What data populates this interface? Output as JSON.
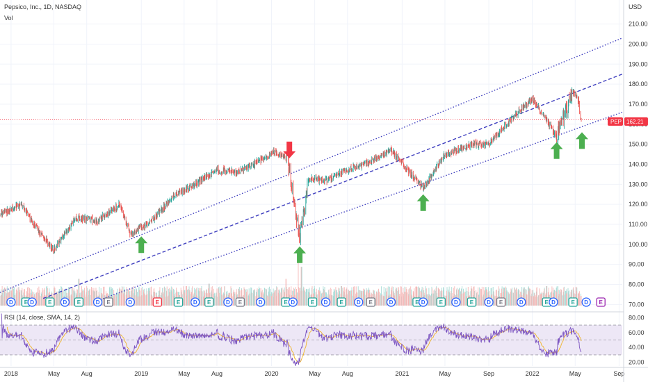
{
  "header": {
    "symbol_line": "Pepsico, Inc., 1D, NASDAQ",
    "volume_label": "Vol",
    "currency": "USD"
  },
  "price_tag": {
    "ticker": "PEP",
    "value": "162.21"
  },
  "colors": {
    "up": "#26a69a",
    "down": "#ef5350",
    "channel": "#3f3fbf",
    "arrow_up": "#4caf50",
    "arrow_down": "#f23645",
    "rsi_line": "#7e57c2",
    "rsi_sma": "#f0b429",
    "rsi_band": "#ede7f6",
    "price_tag": "#f23645"
  },
  "chart_data": [
    {
      "type": "candlestick",
      "title": "Pepsico, Inc., 1D, NASDAQ",
      "ylabel": "USD",
      "ylim": [
        67,
        222
      ],
      "xlim": [
        "2017-12-01",
        "2022-09-10"
      ],
      "y_ticks": [
        "70.00",
        "80.00",
        "90.00",
        "100.00",
        "110.00",
        "120.00",
        "130.00",
        "140.00",
        "150.00",
        "160.00",
        "170.00",
        "180.00",
        "190.00",
        "200.00",
        "210.00"
      ],
      "x_ticks": [
        {
          "label": "2018",
          "date": "2018-01-01"
        },
        {
          "label": "May",
          "date": "2018-05-01"
        },
        {
          "label": "Aug",
          "date": "2018-08-01"
        },
        {
          "label": "2019",
          "date": "2019-01-01"
        },
        {
          "label": "May",
          "date": "2019-05-01"
        },
        {
          "label": "Aug",
          "date": "2019-08-01"
        },
        {
          "label": "2020",
          "date": "2020-01-01"
        },
        {
          "label": "May",
          "date": "2020-05-01"
        },
        {
          "label": "Aug",
          "date": "2020-08-01"
        },
        {
          "label": "2021",
          "date": "2021-01-01"
        },
        {
          "label": "May",
          "date": "2021-05-01"
        },
        {
          "label": "Sep",
          "date": "2021-09-01"
        },
        {
          "label": "2022",
          "date": "2022-01-01"
        },
        {
          "label": "May",
          "date": "2022-05-01"
        },
        {
          "label": "Sep",
          "date": "2022-09-01"
        }
      ],
      "price_path": [
        [
          "2017-12-01",
          115
        ],
        [
          "2018-02-01",
          120
        ],
        [
          "2018-03-01",
          111
        ],
        [
          "2018-05-01",
          97
        ],
        [
          "2018-07-01",
          113
        ],
        [
          "2018-09-01",
          112
        ],
        [
          "2018-11-01",
          120
        ],
        [
          "2018-12-01",
          105
        ],
        [
          "2019-02-01",
          112
        ],
        [
          "2019-04-01",
          124
        ],
        [
          "2019-06-01",
          130
        ],
        [
          "2019-08-01",
          137
        ],
        [
          "2019-10-01",
          136
        ],
        [
          "2020-01-10",
          146
        ],
        [
          "2020-02-15",
          143
        ],
        [
          "2020-03-20",
          103
        ],
        [
          "2020-04-15",
          133
        ],
        [
          "2020-06-01",
          132
        ],
        [
          "2020-07-15",
          136
        ],
        [
          "2020-10-01",
          141
        ],
        [
          "2020-12-01",
          147
        ],
        [
          "2021-03-01",
          128
        ],
        [
          "2021-05-01",
          145
        ],
        [
          "2021-07-15",
          150
        ],
        [
          "2021-09-01",
          150
        ],
        [
          "2021-11-01",
          162
        ],
        [
          "2022-01-01",
          173
        ],
        [
          "2022-03-10",
          154
        ],
        [
          "2022-04-25",
          176
        ],
        [
          "2022-05-10",
          172
        ],
        [
          "2022-05-18",
          160
        ]
      ],
      "last_price": 162.21,
      "channel_lines": [
        {
          "style": "dotted",
          "start": [
            "2017-12-01",
            76
          ],
          "end": [
            "2022-09-10",
            203
          ]
        },
        {
          "style": "dashed",
          "start": [
            "2018-04-01",
            73
          ],
          "end": [
            "2022-09-10",
            185
          ]
        },
        {
          "style": "dotted",
          "start": [
            "2018-09-01",
            72
          ],
          "end": [
            "2022-09-10",
            166
          ]
        }
      ],
      "annotations": [
        {
          "kind": "arrow-up",
          "date": "2019-01-01",
          "value": 104
        },
        {
          "kind": "arrow-down",
          "date": "2020-02-20",
          "value": 143
        },
        {
          "kind": "arrow-up",
          "date": "2020-03-20",
          "value": 99
        },
        {
          "kind": "arrow-up",
          "date": "2021-03-01",
          "value": 125
        },
        {
          "kind": "arrow-up",
          "date": "2022-03-10",
          "value": 151
        },
        {
          "kind": "arrow-up",
          "date": "2022-05-20",
          "value": 156
        }
      ],
      "volume_spikes": [
        [
          "2018-07-10",
          0.55
        ],
        [
          "2019-07-10",
          0.45
        ],
        [
          "2020-02-10",
          0.55
        ],
        [
          "2020-03-15",
          1.0
        ],
        [
          "2020-03-25",
          0.8
        ],
        [
          "2020-07-15",
          0.4
        ],
        [
          "2021-02-10",
          0.35
        ],
        [
          "2021-07-15",
          0.35
        ],
        [
          "2022-02-10",
          0.4
        ],
        [
          "2022-04-25",
          0.35
        ]
      ]
    },
    {
      "type": "line",
      "title": "RSI (14, close, SMA, 14, 2)",
      "ylim": [
        15,
        85
      ],
      "y_ticks": [
        "20.00",
        "40.00",
        "60.00",
        "80.00"
      ],
      "bands": [
        30,
        50,
        70
      ],
      "series": [
        {
          "name": "RSI",
          "color": "#7e57c2"
        },
        {
          "name": "SMA",
          "color": "#f0b429"
        }
      ]
    }
  ],
  "event_markers": [
    {
      "date": "2018-01-01",
      "kind": "D",
      "color": "#2962ff"
    },
    {
      "date": "2018-02-12",
      "kind": "E",
      "color": "#26a69a"
    },
    {
      "date": "2018-03-01",
      "kind": "D",
      "color": "#2962ff"
    },
    {
      "date": "2018-04-20",
      "kind": "E",
      "color": "#26a69a"
    },
    {
      "date": "2018-06-01",
      "kind": "D",
      "color": "#2962ff"
    },
    {
      "date": "2018-07-10",
      "kind": "E",
      "color": "#26a69a"
    },
    {
      "date": "2018-09-01",
      "kind": "D",
      "color": "#2962ff"
    },
    {
      "date": "2018-10-01",
      "kind": "E",
      "color": "#787b86"
    },
    {
      "date": "2018-12-01",
      "kind": "D",
      "color": "#2962ff"
    },
    {
      "date": "2019-02-15",
      "kind": "E",
      "color": "#f23645"
    },
    {
      "date": "2019-04-15",
      "kind": "E",
      "color": "#26a69a"
    },
    {
      "date": "2019-06-01",
      "kind": "D",
      "color": "#2962ff"
    },
    {
      "date": "2019-07-10",
      "kind": "E",
      "color": "#26a69a"
    },
    {
      "date": "2019-09-01",
      "kind": "D",
      "color": "#2962ff"
    },
    {
      "date": "2019-10-05",
      "kind": "E",
      "color": "#787b86"
    },
    {
      "date": "2019-12-01",
      "kind": "D",
      "color": "#2962ff"
    },
    {
      "date": "2020-02-10",
      "kind": "E",
      "color": "#26a69a"
    },
    {
      "date": "2020-03-01",
      "kind": "D",
      "color": "#2962ff"
    },
    {
      "date": "2020-04-25",
      "kind": "E",
      "color": "#26a69a"
    },
    {
      "date": "2020-06-01",
      "kind": "D",
      "color": "#2962ff"
    },
    {
      "date": "2020-07-15",
      "kind": "E",
      "color": "#26a69a"
    },
    {
      "date": "2020-09-01",
      "kind": "D",
      "color": "#2962ff"
    },
    {
      "date": "2020-10-05",
      "kind": "E",
      "color": "#787b86"
    },
    {
      "date": "2020-12-01",
      "kind": "D",
      "color": "#2962ff"
    },
    {
      "date": "2021-02-12",
      "kind": "E",
      "color": "#26a69a"
    },
    {
      "date": "2021-03-01",
      "kind": "D",
      "color": "#2962ff"
    },
    {
      "date": "2021-04-20",
      "kind": "E",
      "color": "#26a69a"
    },
    {
      "date": "2021-06-01",
      "kind": "D",
      "color": "#2962ff"
    },
    {
      "date": "2021-07-15",
      "kind": "E",
      "color": "#26a69a"
    },
    {
      "date": "2021-09-01",
      "kind": "D",
      "color": "#2962ff"
    },
    {
      "date": "2021-10-05",
      "kind": "E",
      "color": "#787b86"
    },
    {
      "date": "2021-12-01",
      "kind": "D",
      "color": "#2962ff"
    },
    {
      "date": "2022-02-10",
      "kind": "E",
      "color": "#26a69a"
    },
    {
      "date": "2022-03-01",
      "kind": "D",
      "color": "#2962ff"
    },
    {
      "date": "2022-04-25",
      "kind": "E",
      "color": "#26a69a"
    },
    {
      "date": "2022-06-01",
      "kind": "D",
      "color": "#2962ff"
    },
    {
      "date": "2022-07-12",
      "kind": "E",
      "color": "#9c27b0"
    }
  ]
}
